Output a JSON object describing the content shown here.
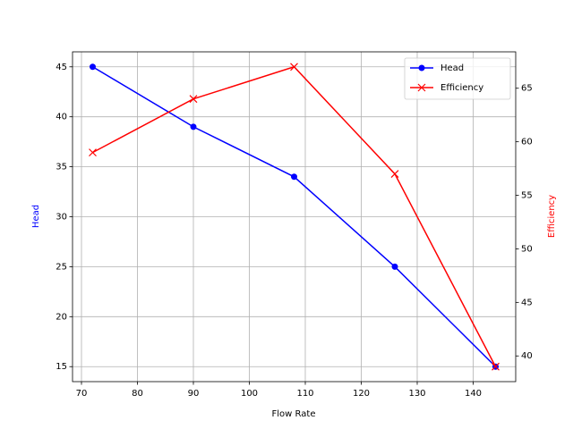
{
  "chart_data": {
    "type": "line",
    "x": [
      72,
      90,
      108,
      126,
      144
    ],
    "xlabel": "Flow Rate",
    "ylabel": "Head",
    "y2label": "Efficiency",
    "series": [
      {
        "name": "Head",
        "color": "#0000ff",
        "marker": "o",
        "axis": "y",
        "values": [
          45,
          39,
          34,
          25,
          15
        ]
      },
      {
        "name": "Efficiency",
        "color": "#ff0000",
        "marker": "x",
        "axis": "y2",
        "values": [
          59,
          64,
          67,
          57,
          39
        ]
      }
    ],
    "xlim": [
      68.4,
      147.6
    ],
    "xticks": [
      70,
      80,
      90,
      100,
      110,
      120,
      130,
      140
    ],
    "ylim": [
      13.5,
      46.5
    ],
    "yticks": [
      15,
      20,
      25,
      30,
      35,
      40,
      45
    ],
    "y2lim": [
      37.6,
      68.4
    ],
    "y2ticks": [
      40,
      45,
      50,
      55,
      60,
      65
    ],
    "grid": true,
    "legend": "upper right"
  }
}
